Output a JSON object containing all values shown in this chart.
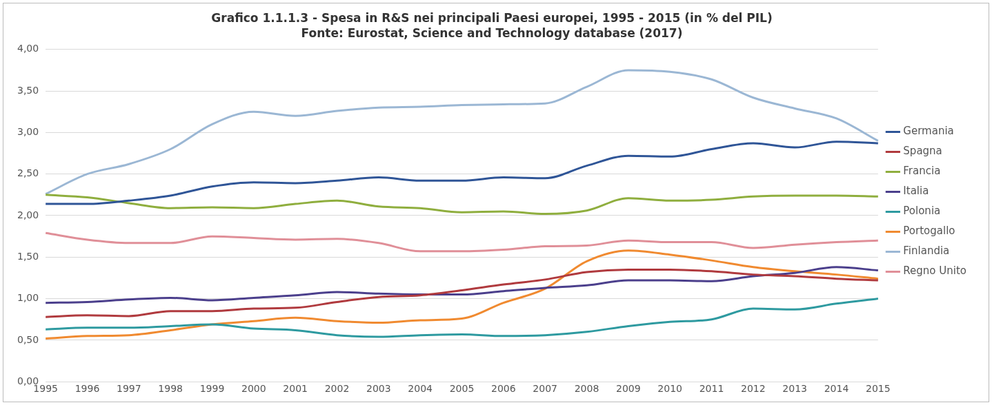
{
  "chart_data": {
    "type": "line",
    "title": "Grafico 1.1.1.3 - Spesa in R&S nei principali Paesi europei, 1995 - 2015 (in % del PIL)",
    "subtitle": "Fonte: Eurostat, Science and Technology database (2017)",
    "categories": [
      "1995",
      "1996",
      "1997",
      "1998",
      "1999",
      "2000",
      "2001",
      "2002",
      "2003",
      "2004",
      "2005",
      "2006",
      "2007",
      "2008",
      "2009",
      "2010",
      "2011",
      "2012",
      "2013",
      "2014",
      "2015"
    ],
    "ylim": [
      0,
      4
    ],
    "yticks": [
      {
        "value": 0,
        "label": "0,00"
      },
      {
        "value": 0.5,
        "label": "0,50"
      },
      {
        "value": 1,
        "label": "1,00"
      },
      {
        "value": 1.5,
        "label": "1,50"
      },
      {
        "value": 2,
        "label": "2,00"
      },
      {
        "value": 2.5,
        "label": "2,50"
      },
      {
        "value": 3,
        "label": "3,00"
      },
      {
        "value": 3.5,
        "label": "3,50"
      },
      {
        "value": 4,
        "label": "4,00"
      }
    ],
    "grid": "y",
    "legend": "right",
    "marker": "none",
    "line_style": "solid",
    "series": [
      {
        "name": "Germania",
        "color": "#2f5597",
        "values": [
          2.14,
          2.14,
          2.18,
          2.24,
          2.35,
          2.4,
          2.39,
          2.42,
          2.46,
          2.42,
          2.42,
          2.46,
          2.45,
          2.6,
          2.72,
          2.71,
          2.8,
          2.87,
          2.82,
          2.89,
          2.87
        ]
      },
      {
        "name": "Spagna",
        "color": "#b03a3e",
        "values": [
          0.78,
          0.8,
          0.79,
          0.85,
          0.85,
          0.88,
          0.89,
          0.96,
          1.02,
          1.04,
          1.1,
          1.17,
          1.23,
          1.32,
          1.35,
          1.35,
          1.33,
          1.29,
          1.27,
          1.24,
          1.22
        ]
      },
      {
        "name": "Francia",
        "color": "#8fae3e",
        "values": [
          2.25,
          2.22,
          2.15,
          2.09,
          2.1,
          2.09,
          2.14,
          2.18,
          2.11,
          2.09,
          2.04,
          2.05,
          2.02,
          2.06,
          2.21,
          2.18,
          2.19,
          2.23,
          2.24,
          2.24,
          2.23
        ]
      },
      {
        "name": "Italia",
        "color": "#4b3f8c",
        "values": [
          0.95,
          0.96,
          0.99,
          1.01,
          0.98,
          1.01,
          1.04,
          1.08,
          1.06,
          1.05,
          1.05,
          1.09,
          1.13,
          1.16,
          1.22,
          1.22,
          1.21,
          1.27,
          1.31,
          1.38,
          1.34
        ]
      },
      {
        "name": "Polonia",
        "color": "#2e9aa0",
        "values": [
          0.63,
          0.65,
          0.65,
          0.67,
          0.69,
          0.64,
          0.62,
          0.56,
          0.54,
          0.56,
          0.57,
          0.55,
          0.56,
          0.6,
          0.67,
          0.72,
          0.75,
          0.88,
          0.87,
          0.94,
          1.0
        ]
      },
      {
        "name": "Portogallo",
        "color": "#f08a30",
        "values": [
          0.52,
          0.55,
          0.56,
          0.62,
          0.69,
          0.73,
          0.77,
          0.73,
          0.71,
          0.74,
          0.76,
          0.95,
          1.12,
          1.45,
          1.58,
          1.53,
          1.46,
          1.38,
          1.33,
          1.29,
          1.24
        ]
      },
      {
        "name": "Finlandia",
        "color": "#9bb7d4",
        "values": [
          2.26,
          2.5,
          2.62,
          2.8,
          3.1,
          3.25,
          3.2,
          3.26,
          3.3,
          3.31,
          3.33,
          3.34,
          3.35,
          3.55,
          3.75,
          3.73,
          3.64,
          3.42,
          3.29,
          3.17,
          2.9
        ]
      },
      {
        "name": "Regno Unito",
        "color": "#e08f98",
        "values": [
          1.79,
          1.71,
          1.67,
          1.67,
          1.75,
          1.73,
          1.71,
          1.72,
          1.67,
          1.57,
          1.57,
          1.59,
          1.63,
          1.64,
          1.7,
          1.68,
          1.68,
          1.61,
          1.65,
          1.68,
          1.7
        ]
      }
    ]
  }
}
